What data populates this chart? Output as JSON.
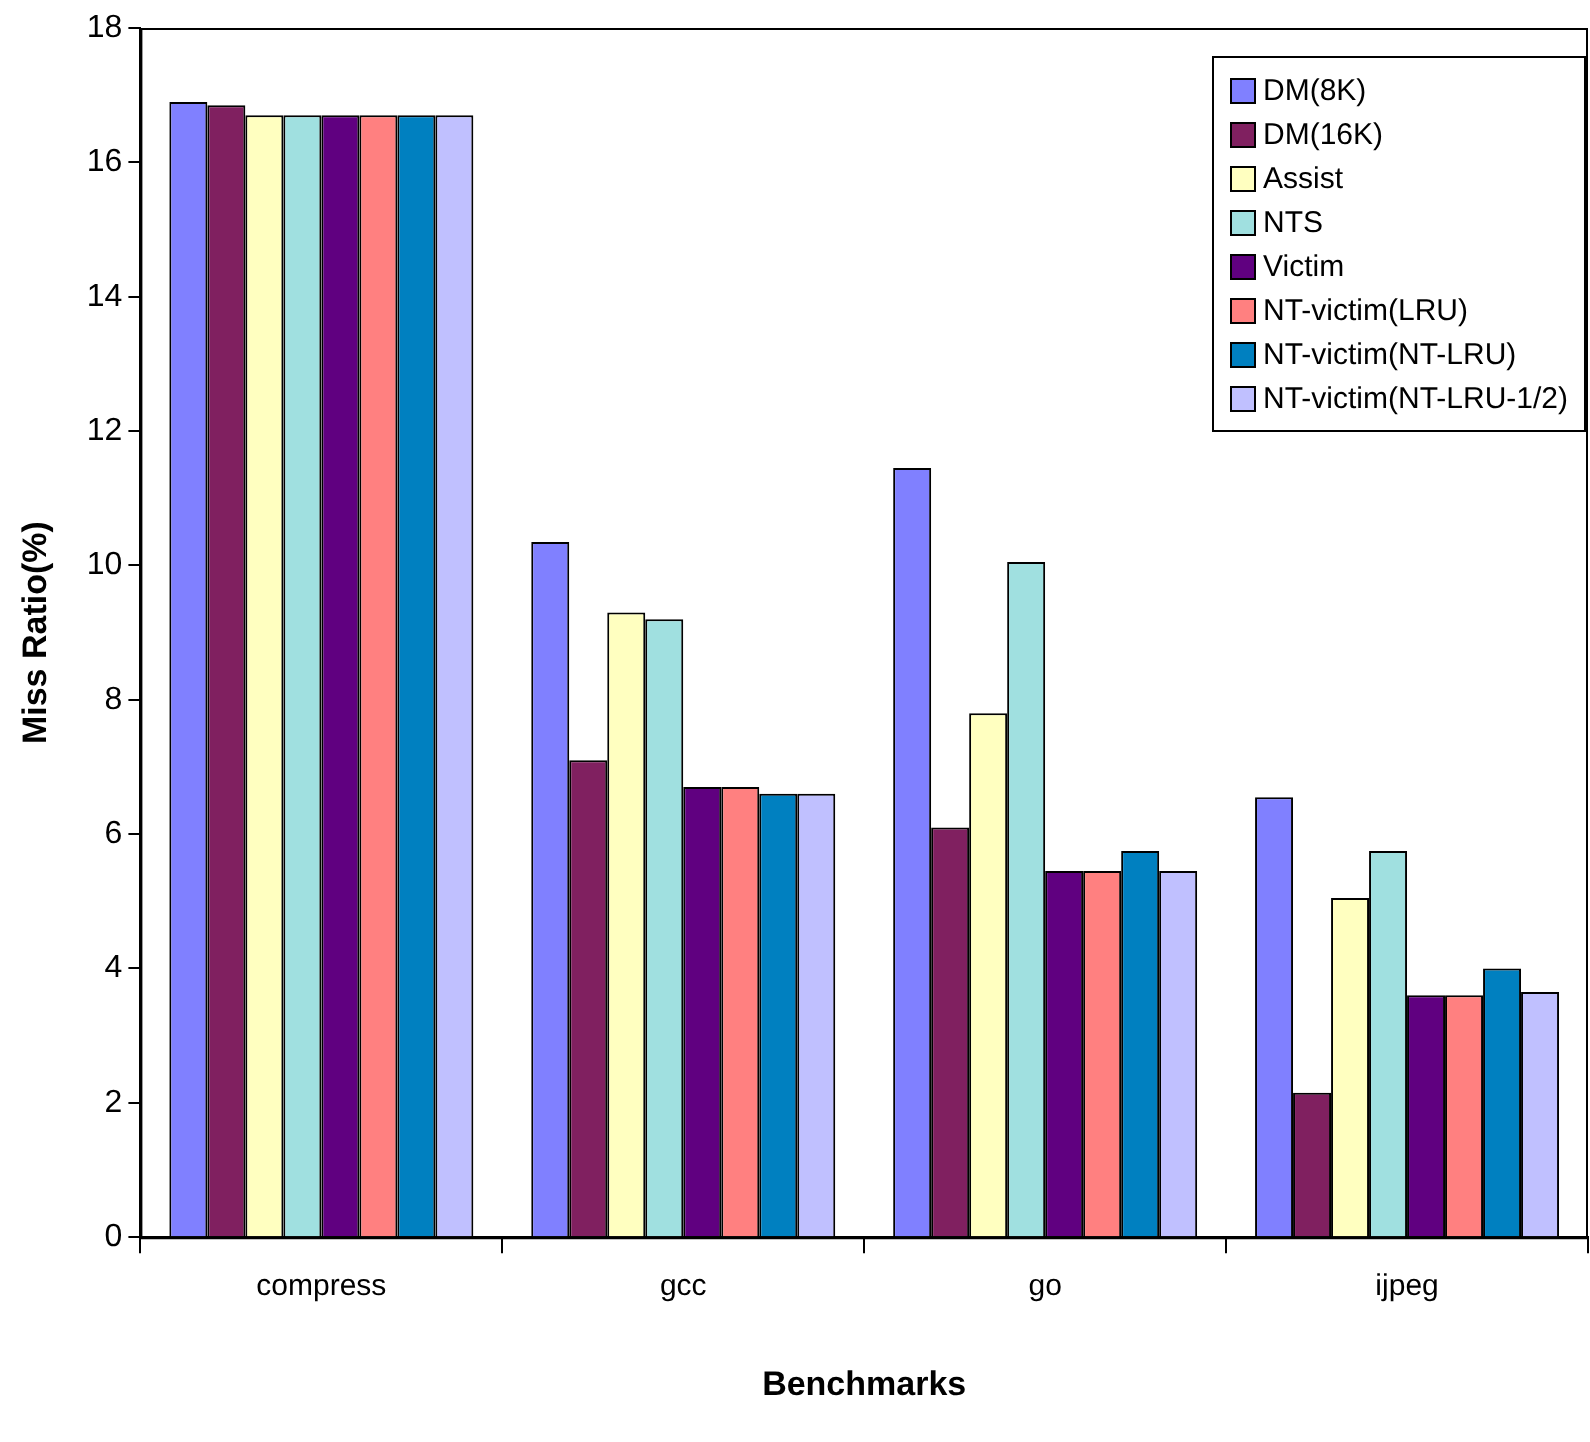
{
  "chart_data": {
    "type": "bar",
    "xlabel": "Benchmarks",
    "ylabel": "Miss Ratio(%)",
    "categories": [
      "compress",
      "gcc",
      "go",
      "ijpeg"
    ],
    "ylim": [
      0,
      18
    ],
    "yticks": [
      0,
      2,
      4,
      6,
      8,
      10,
      12,
      14,
      16,
      18
    ],
    "grid": false,
    "legend": "top right",
    "series": [
      {
        "name": "DM(8K)",
        "color": "#8080ff",
        "values": [
          16.9,
          10.35,
          11.45,
          6.55
        ]
      },
      {
        "name": "DM(16K)",
        "color": "#802060",
        "values": [
          16.85,
          7.1,
          6.1,
          2.15
        ]
      },
      {
        "name": "Assist",
        "color": "#ffffc0",
        "values": [
          16.7,
          9.3,
          7.8,
          5.05
        ]
      },
      {
        "name": "NTS",
        "color": "#a0e0e0",
        "values": [
          16.7,
          9.2,
          10.05,
          5.75
        ]
      },
      {
        "name": "Victim",
        "color": "#600080",
        "values": [
          16.7,
          6.7,
          5.45,
          3.6
        ]
      },
      {
        "name": "NT-victim(LRU)",
        "color": "#ff8080",
        "values": [
          16.7,
          6.7,
          5.45,
          3.6
        ]
      },
      {
        "name": "NT-victim(NT-LRU)",
        "color": "#0080c0",
        "values": [
          16.7,
          6.6,
          5.75,
          4.0
        ]
      },
      {
        "name": "NT-victim(NT-LRU-1/2)",
        "color": "#c0c0ff",
        "values": [
          16.7,
          6.6,
          5.45,
          3.65
        ]
      }
    ]
  }
}
